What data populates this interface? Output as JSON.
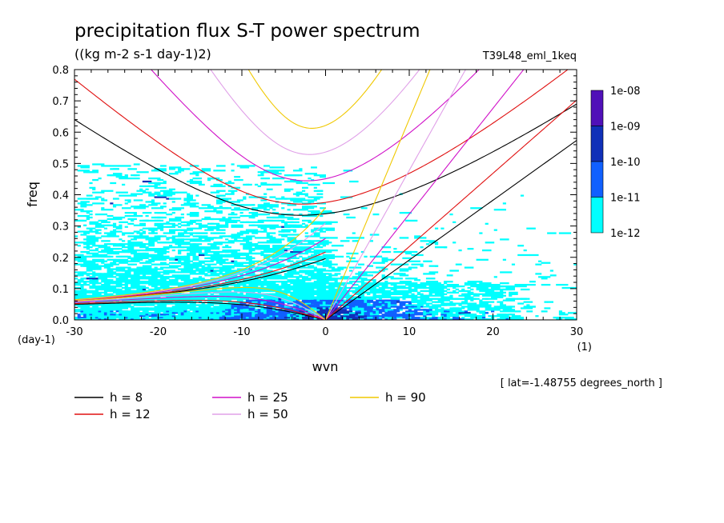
{
  "chart_data": {
    "type": "line",
    "title": "precipitation flux S-T power spectrum",
    "subtitle": "((kg m-2 s-1 day-1)2)",
    "run_label": "T39L48_eml_1keq",
    "xlabel": "wvn",
    "ylabel": "freq",
    "x_units": "(1)",
    "y_units": "(day-1)",
    "xlim": [
      -30,
      30
    ],
    "ylim": [
      0,
      0.8
    ],
    "x_ticks": [
      -30,
      -20,
      -10,
      0,
      10,
      20,
      30
    ],
    "x_tick_labels": [
      "-30",
      "-20",
      "-10",
      "0",
      "10",
      "20",
      "30"
    ],
    "y_ticks": [
      0,
      0.1,
      0.2,
      0.3,
      0.4,
      0.5,
      0.6,
      0.7,
      0.8
    ],
    "y_tick_labels": [
      "0.0",
      "0.1",
      "0.2",
      "0.3",
      "0.4",
      "0.5",
      "0.6",
      "0.7",
      "0.8"
    ],
    "footnote": "[ lat=-1.48755 degrees_north ]",
    "grid": false,
    "colorbar": {
      "labels": [
        "1e-08",
        "1e-09",
        "1e-10",
        "1e-11",
        "1e-12"
      ],
      "colors": [
        "#5010b8",
        "#1030b8",
        "#1060ff",
        "#00ffff"
      ]
    },
    "series": [
      {
        "name": "h =  8",
        "h": 8,
        "color": "#000000"
      },
      {
        "name": "h = 12",
        "h": 12,
        "color": "#e01010"
      },
      {
        "name": "h = 25",
        "h": 25,
        "color": "#d010c8"
      },
      {
        "name": "h = 50",
        "h": 50,
        "color": "#e0a0e8"
      },
      {
        "name": "h = 90",
        "h": 90,
        "color": "#f0c800"
      }
    ],
    "curve_minimum_freq": {
      "h =  8": 0.335,
      "h = 12": 0.37,
      "h = 25": 0.445,
      "h = 50": 0.525,
      "h = 90": 0.61
    },
    "spectrum_peak": {
      "wvn": 0,
      "freq": 0.0,
      "level": "1e-09"
    }
  }
}
